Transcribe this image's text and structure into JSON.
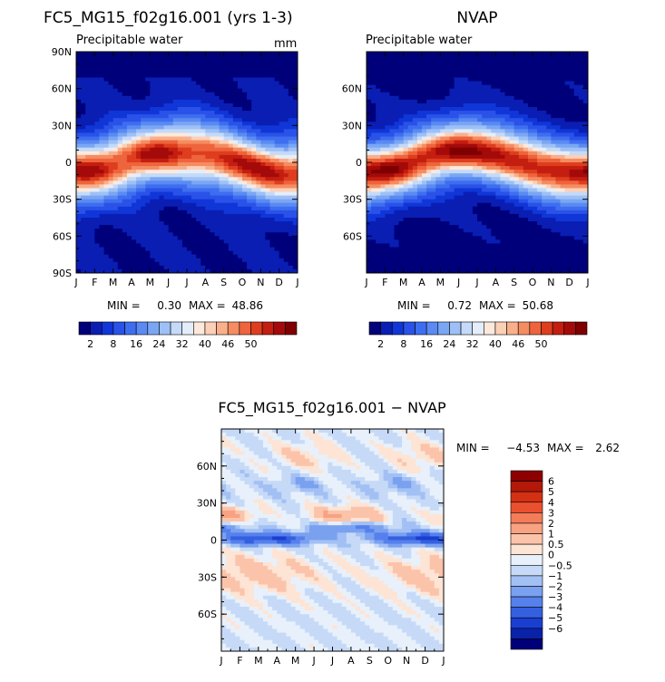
{
  "chart_data": [
    {
      "type": "heatmap",
      "title": "FC5_MG15_f02g16.001 (yrs 1-3)",
      "subtitle": "Precipitable water",
      "units": "mm",
      "x_tick_labels": [
        "J",
        "F",
        "M",
        "A",
        "M",
        "J",
        "J",
        "A",
        "S",
        "O",
        "N",
        "D",
        "J"
      ],
      "y_tick_labels": [
        "90N",
        "60N",
        "30N",
        "0",
        "30S",
        "60S",
        "90S"
      ],
      "ylim": [
        -90,
        90
      ],
      "stats": {
        "min_label": "MIN =",
        "min": "0.30",
        "max_label": "MAX =",
        "max": "48.86"
      },
      "colorbar": {
        "levels": [
          "2",
          "8",
          "16",
          "24",
          "32",
          "40",
          "46",
          "50"
        ],
        "colors": [
          "#00007a",
          "#0a1eb4",
          "#1036d8",
          "#2a52e8",
          "#3e6ef0",
          "#5a8af2",
          "#7aa6f4",
          "#9ec0f6",
          "#c4daf8",
          "#e4eefa",
          "#fde9dc",
          "#fcd0b6",
          "#f9b08a",
          "#f58c62",
          "#ee643c",
          "#de3e1e",
          "#c41e10",
          "#a40a0a",
          "#7e0000"
        ]
      }
    },
    {
      "type": "heatmap",
      "title": "NVAP",
      "subtitle": "Precipitable water",
      "x_tick_labels": [
        "J",
        "F",
        "M",
        "A",
        "M",
        "J",
        "J",
        "A",
        "S",
        "O",
        "N",
        "D",
        "J"
      ],
      "y_tick_labels": [
        "60N",
        "30N",
        "0",
        "30S",
        "60S"
      ],
      "ylim": [
        -90,
        90
      ],
      "stats": {
        "min_label": "MIN =",
        "min": "0.72",
        "max_label": "MAX =",
        "max": "50.68"
      },
      "colorbar": {
        "levels": [
          "2",
          "8",
          "16",
          "24",
          "32",
          "40",
          "46",
          "50"
        ],
        "colors": [
          "#00007a",
          "#0a1eb4",
          "#1036d8",
          "#2a52e8",
          "#3e6ef0",
          "#5a8af2",
          "#7aa6f4",
          "#9ec0f6",
          "#c4daf8",
          "#e4eefa",
          "#fde9dc",
          "#fcd0b6",
          "#f9b08a",
          "#f58c62",
          "#ee643c",
          "#de3e1e",
          "#c41e10",
          "#a40a0a",
          "#7e0000"
        ]
      }
    },
    {
      "type": "heatmap",
      "title": "FC5_MG15_f02g16.001 − NVAP",
      "x_tick_labels": [
        "J",
        "F",
        "M",
        "A",
        "M",
        "J",
        "J",
        "A",
        "S",
        "O",
        "N",
        "D",
        "J"
      ],
      "y_tick_labels": [
        "60N",
        "30N",
        "0",
        "30S",
        "60S"
      ],
      "ylim": [
        -90,
        90
      ],
      "stats": {
        "min_label": "MIN =",
        "min": "−4.53",
        "max_label": "MAX =",
        "max": "2.62"
      },
      "colorbar": {
        "levels": [
          "6",
          "5",
          "4",
          "3",
          "2",
          "1",
          "0.5",
          "0",
          "−0.5",
          "−1",
          "−2",
          "−3",
          "−4",
          "−5",
          "−6"
        ],
        "colors": [
          "#8c0000",
          "#b41808",
          "#d43014",
          "#ea5030",
          "#f47c58",
          "#f8a282",
          "#fbc4aa",
          "#fde4d4",
          "#e8f1fb",
          "#c6daf8",
          "#a2c0f4",
          "#7aa0f0",
          "#5680ec",
          "#3460e0",
          "#1a3ed0",
          "#0a22a8",
          "#000078"
        ]
      }
    }
  ]
}
